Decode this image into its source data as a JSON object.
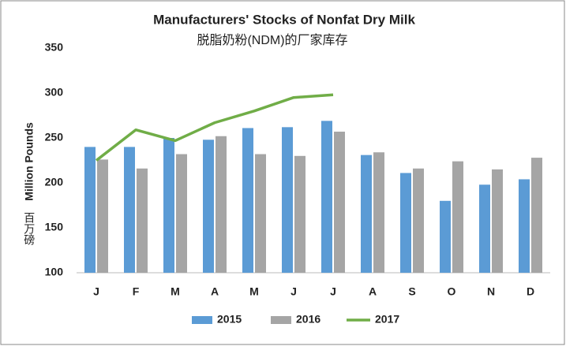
{
  "chart_data": {
    "type": "bar",
    "title": "Manufacturers' Stocks of Nonfat Dry Milk",
    "subtitle": "脱脂奶粉(NDM)的厂家库存",
    "y_label": "Million Pounds",
    "y_label_cn": "百万磅",
    "categories": [
      "J",
      "F",
      "M",
      "A",
      "M",
      "J",
      "J",
      "A",
      "S",
      "O",
      "N",
      "D"
    ],
    "series": [
      {
        "name": "2015",
        "type": "bar",
        "color": "#5b9bd5",
        "values": [
          240,
          240,
          250,
          248,
          261,
          262,
          269,
          231,
          211,
          180,
          198,
          204
        ]
      },
      {
        "name": "2016",
        "type": "bar",
        "color": "#a5a5a5",
        "values": [
          226,
          216,
          232,
          252,
          232,
          230,
          257,
          234,
          216,
          224,
          215,
          228
        ]
      },
      {
        "name": "2017",
        "type": "line",
        "color": "#70ad47",
        "values": [
          225,
          259,
          247,
          267,
          280,
          295,
          298,
          null,
          null,
          null,
          null,
          null
        ]
      }
    ],
    "ylim": [
      100,
      350
    ],
    "yticks": [
      100,
      150,
      200,
      250,
      300,
      350
    ],
    "grid": false,
    "legend": "bottom"
  }
}
